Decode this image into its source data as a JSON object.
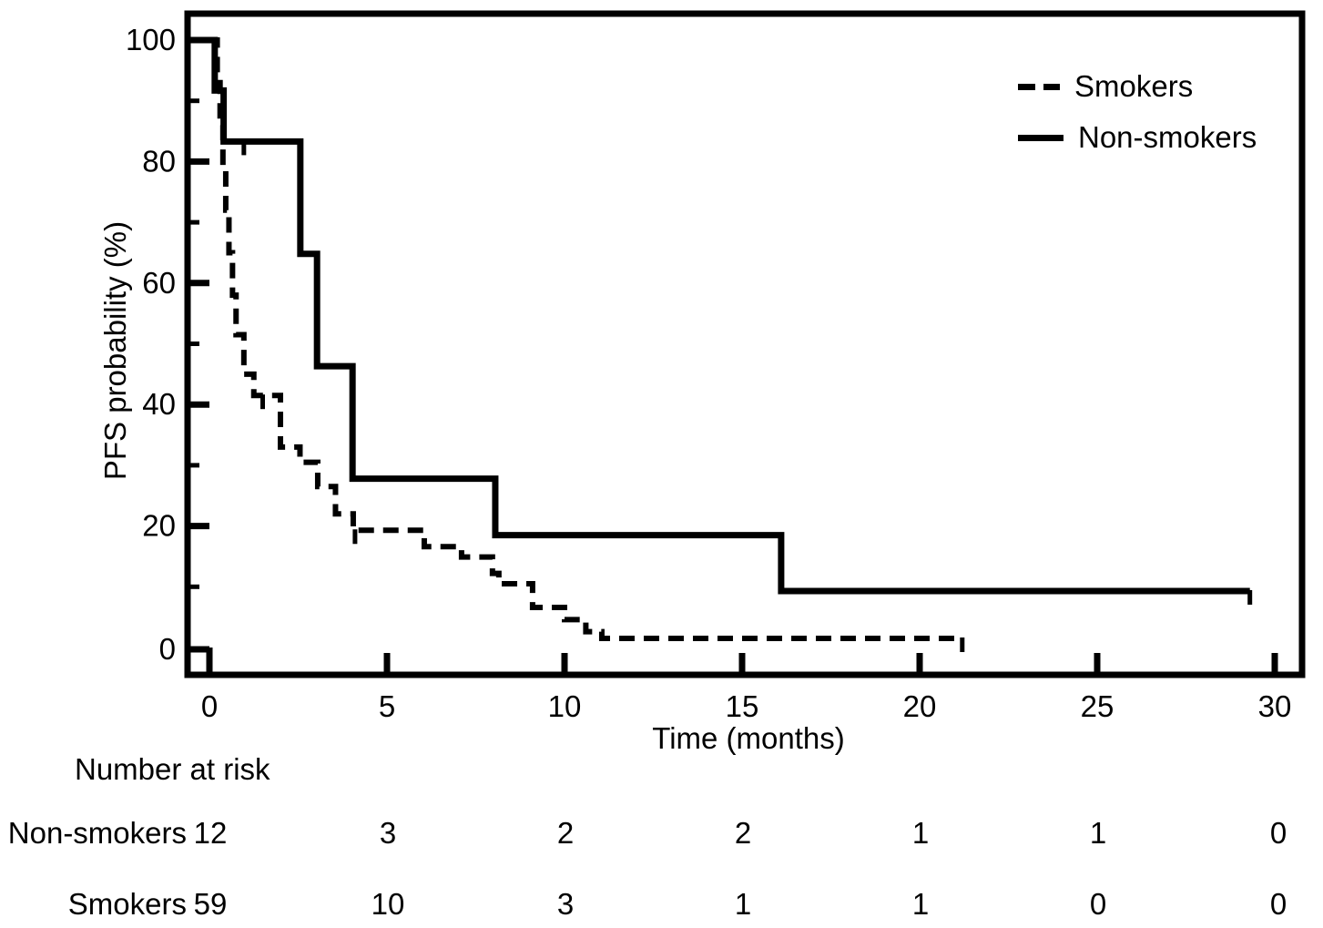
{
  "figure": {
    "background": "#ffffff",
    "ink_color": "#000000"
  },
  "chart_data": {
    "type": "line",
    "subtype": "kaplan-meier-step",
    "title": "",
    "xlabel": "Time (months)",
    "ylabel": "PFS probability (%)",
    "xlim": [
      0,
      30
    ],
    "ylim": [
      0,
      100
    ],
    "xticks": [
      0,
      5,
      10,
      15,
      20,
      25,
      30
    ],
    "yticks": [
      0,
      20,
      40,
      60,
      80,
      100
    ],
    "yticks_minor": [
      10,
      30,
      50,
      70,
      90
    ],
    "grid": false,
    "legend_position": "top-right",
    "series": [
      {
        "name": "Smokers",
        "line_style": "dashed",
        "color": "#000000",
        "steps": [
          [
            0,
            100
          ],
          [
            0.22,
            93
          ],
          [
            0.3,
            86
          ],
          [
            0.38,
            79
          ],
          [
            0.46,
            72
          ],
          [
            0.55,
            65
          ],
          [
            0.65,
            58
          ],
          [
            0.75,
            51.5
          ],
          [
            0.97,
            45
          ],
          [
            1.25,
            41.5
          ],
          [
            2.0,
            33
          ],
          [
            2.55,
            30.5
          ],
          [
            3.05,
            26.5
          ],
          [
            3.55,
            22
          ],
          [
            4.05,
            19.3
          ],
          [
            6.05,
            16.6
          ],
          [
            7.1,
            14.9
          ],
          [
            7.97,
            12.2
          ],
          [
            8.15,
            10.5
          ],
          [
            9.1,
            6.6
          ],
          [
            10.0,
            4.6
          ],
          [
            10.6,
            2.6
          ],
          [
            11.05,
            1.5
          ]
        ],
        "end_time": 21.2,
        "censor_marks": [
          [
            1.5,
            41.5
          ],
          [
            4.1,
            19.3
          ],
          [
            21.2,
            1.5
          ]
        ]
      },
      {
        "name": "Non-smokers",
        "line_style": "solid",
        "color": "#000000",
        "steps": [
          [
            0,
            100
          ],
          [
            0.15,
            91.7
          ],
          [
            0.4,
            83.3
          ],
          [
            2.56,
            64.8
          ],
          [
            3.03,
            46.3
          ],
          [
            4.03,
            27.8
          ],
          [
            8.05,
            18.5
          ],
          [
            16.1,
            9.3
          ]
        ],
        "end_time": 29.3,
        "censor_marks": [
          [
            0.97,
            83.3
          ],
          [
            29.3,
            9.3
          ]
        ]
      }
    ]
  },
  "risk_table": {
    "title": "Number at risk",
    "time_points": [
      0,
      5,
      10,
      15,
      20,
      25,
      30
    ],
    "rows": [
      {
        "label": "Non-smokers",
        "values": [
          12,
          3,
          2,
          2,
          1,
          1,
          0
        ]
      },
      {
        "label": "Smokers",
        "values": [
          59,
          10,
          3,
          1,
          1,
          0,
          0
        ]
      }
    ]
  }
}
